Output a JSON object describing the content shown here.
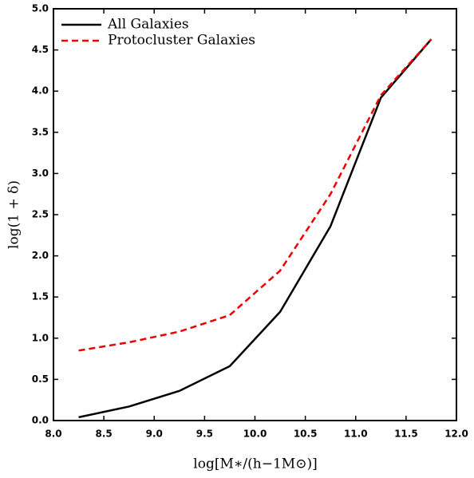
{
  "chart_data": {
    "type": "line",
    "x_label": "log[M∗/(h−1M⊙)]",
    "y_label": "log(1 + δ)",
    "x": [
      8.25,
      8.75,
      9.25,
      9.75,
      10.25,
      10.75,
      11.25,
      11.75
    ],
    "series": [
      {
        "name": "All Galaxies",
        "color": "#000000",
        "dash": "solid",
        "values": [
          0.04,
          0.17,
          0.36,
          0.66,
          1.32,
          2.36,
          3.92,
          4.63
        ]
      },
      {
        "name": "Protocluster Galaxies",
        "color": "#ee0000",
        "dash": "dashed",
        "values": [
          0.85,
          0.95,
          1.08,
          1.28,
          1.82,
          2.75,
          3.95,
          4.63
        ]
      }
    ],
    "xlim": [
      8.0,
      12.0
    ],
    "ylim": [
      0.0,
      5.0
    ],
    "xticks": [
      {
        "value": 8.0,
        "label": "8.0"
      },
      {
        "value": 8.5,
        "label": "8.5"
      },
      {
        "value": 9.0,
        "label": "9.0"
      },
      {
        "value": 9.5,
        "label": "9.5"
      },
      {
        "value": 10.0,
        "label": "10.0"
      },
      {
        "value": 10.5,
        "label": "10.5"
      },
      {
        "value": 11.0,
        "label": "11.0"
      },
      {
        "value": 11.5,
        "label": "11.5"
      },
      {
        "value": 12.0,
        "label": "12.0"
      }
    ],
    "yticks": [
      {
        "value": 0.0,
        "label": "0.0"
      },
      {
        "value": 0.5,
        "label": "0.5"
      },
      {
        "value": 1.0,
        "label": "1.0"
      },
      {
        "value": 1.5,
        "label": "1.5"
      },
      {
        "value": 2.0,
        "label": "2.0"
      },
      {
        "value": 2.5,
        "label": "2.5"
      },
      {
        "value": 3.0,
        "label": "3.0"
      },
      {
        "value": 3.5,
        "label": "3.5"
      },
      {
        "value": 4.0,
        "label": "4.0"
      },
      {
        "value": 4.5,
        "label": "4.5"
      },
      {
        "value": 5.0,
        "label": "5.0"
      }
    ],
    "legend": "upper left"
  }
}
